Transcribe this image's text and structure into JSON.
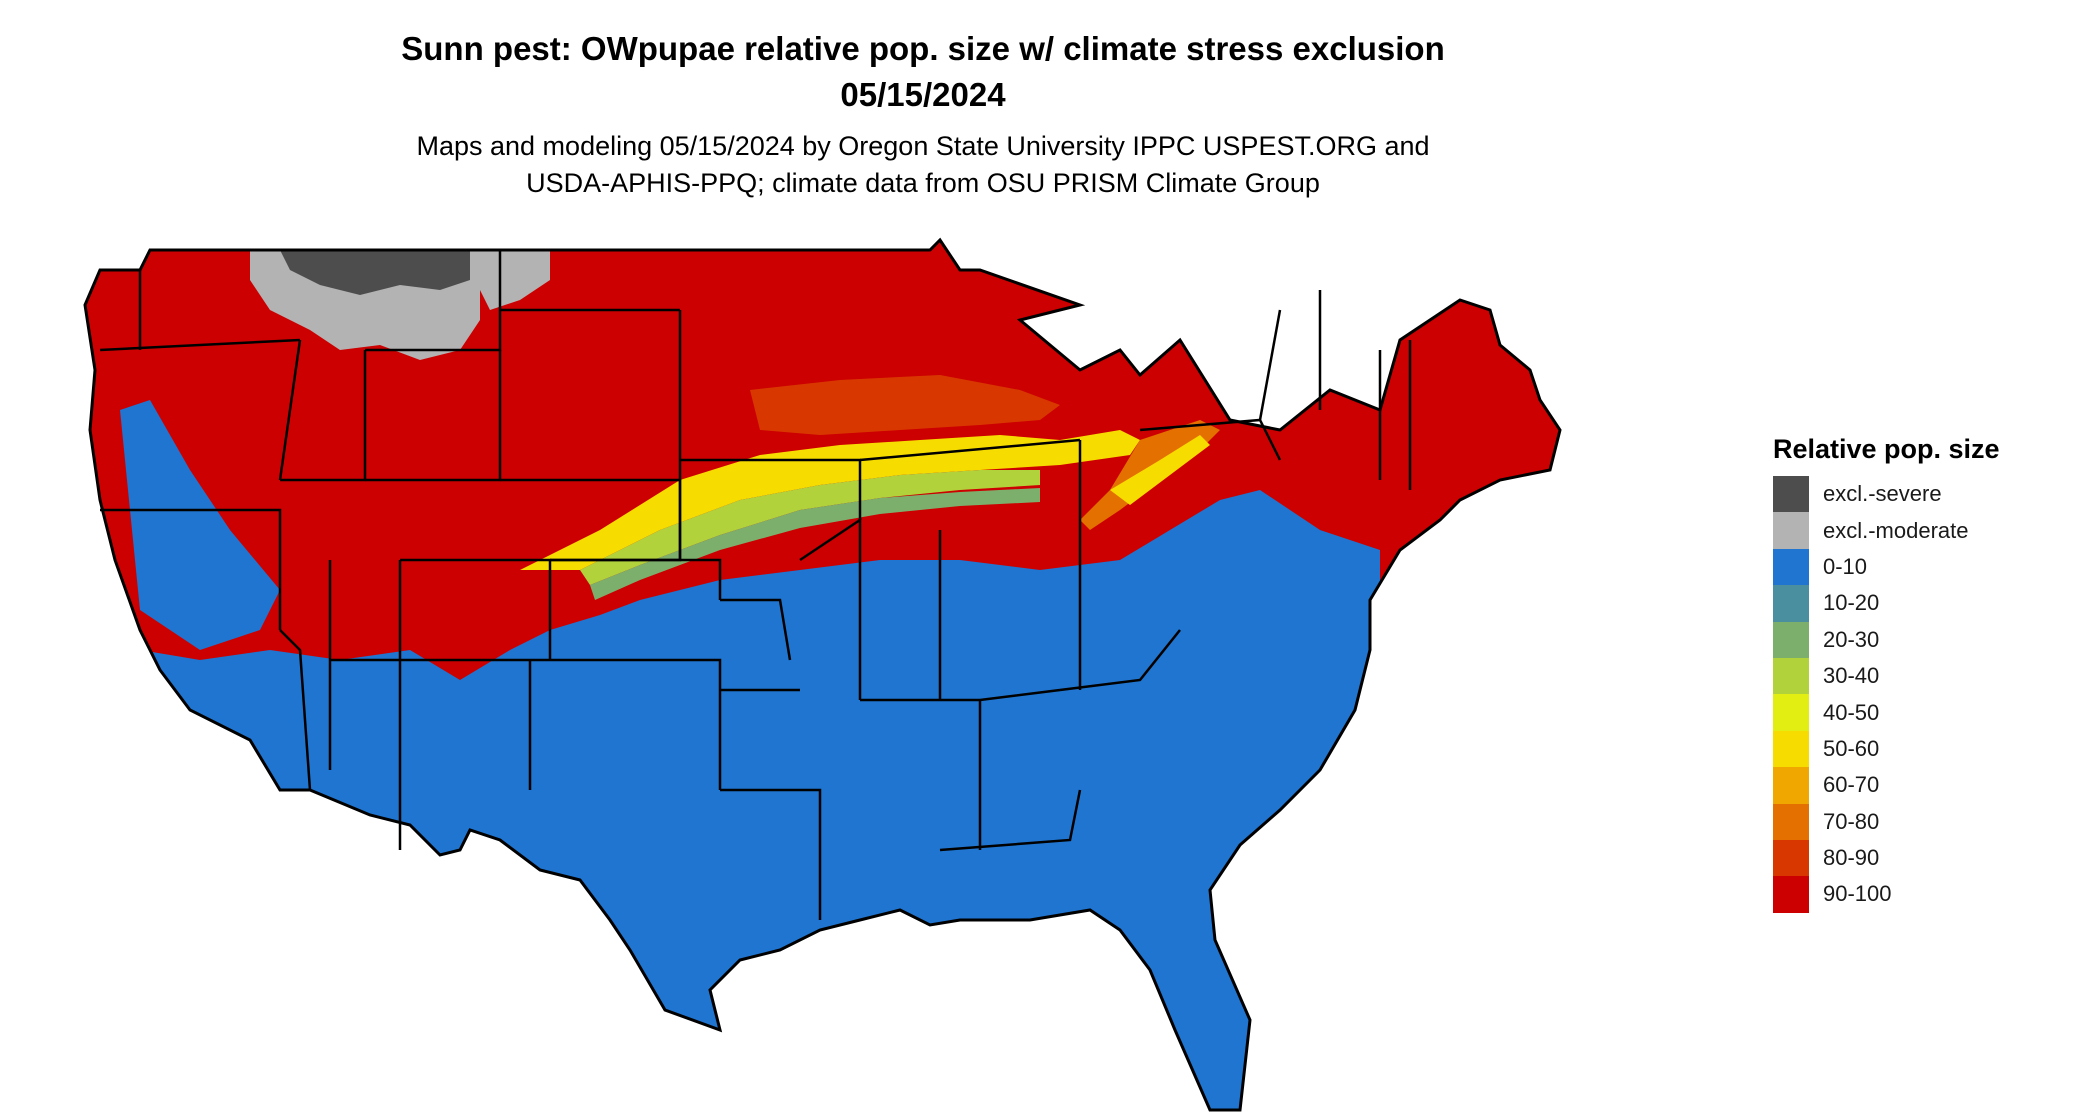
{
  "title": {
    "line1": "Sunn pest: OWpupae relative pop. size w/ climate stress exclusion",
    "line2": "05/15/2024"
  },
  "subtitle": {
    "line1": "Maps and modeling 05/15/2024 by Oregon State University IPPC USPEST.ORG and",
    "line2": "USDA-APHIS-PPQ; climate data from OSU PRISM Climate Group"
  },
  "legend": {
    "title": "Relative pop. size",
    "items": [
      {
        "label": "excl.-severe",
        "color": "#4d4d4d"
      },
      {
        "label": "excl.-moderate",
        "color": "#b3b3b3"
      },
      {
        "label": "0-10",
        "color": "#1f75d0"
      },
      {
        "label": "10-20",
        "color": "#4a8fa0"
      },
      {
        "label": "20-30",
        "color": "#7caf6c"
      },
      {
        "label": "30-40",
        "color": "#b2d23c"
      },
      {
        "label": "40-50",
        "color": "#e2ee12"
      },
      {
        "label": "50-60",
        "color": "#f7dc00"
      },
      {
        "label": "60-70",
        "color": "#f0a800"
      },
      {
        "label": "70-80",
        "color": "#e47000"
      },
      {
        "label": "80-90",
        "color": "#d83800"
      },
      {
        "label": "90-100",
        "color": "#cc0000"
      }
    ]
  },
  "map": {
    "region": "Contiguous United States",
    "border_color": "#000000"
  }
}
